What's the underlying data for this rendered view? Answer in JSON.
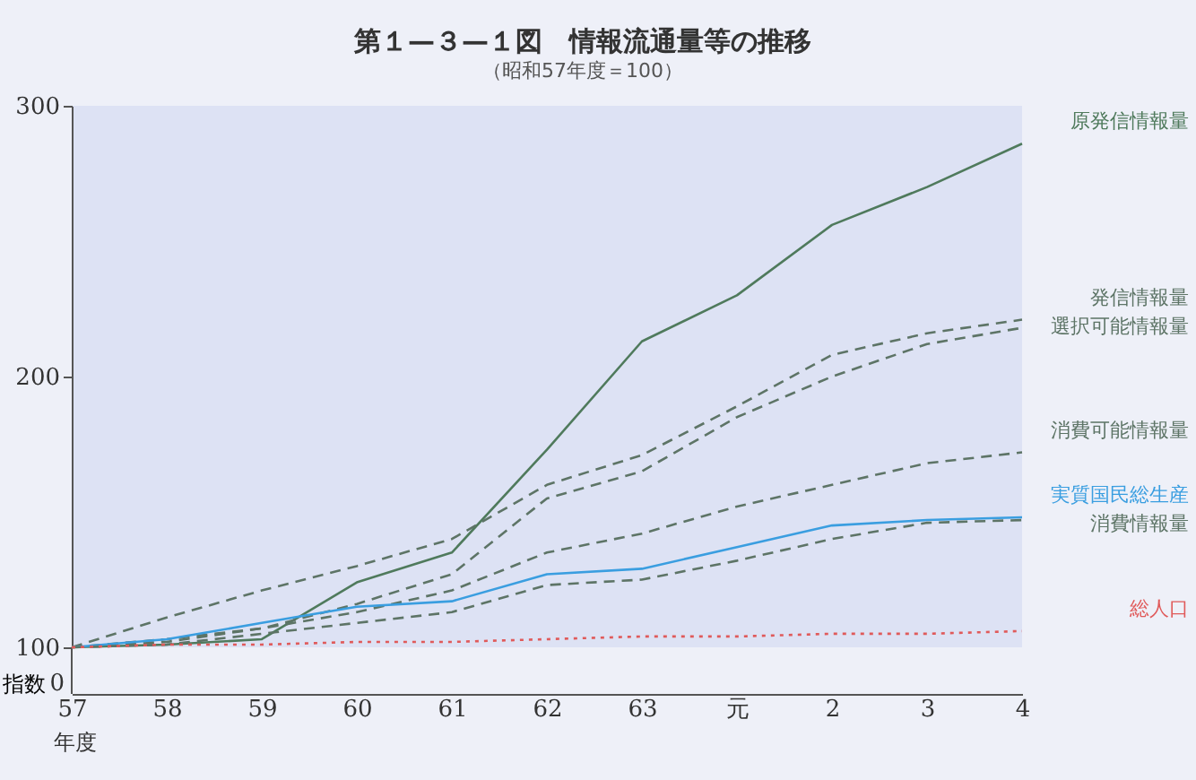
{
  "chart_data": {
    "type": "line",
    "title": "第１—３—１図　情報流通量等の推移",
    "subtitle": "（昭和57年度＝100）",
    "xlabel": "年度",
    "ylabel": "指数",
    "categories": [
      "57",
      "58",
      "59",
      "60",
      "61",
      "62",
      "63",
      "元",
      "2",
      "3",
      "4"
    ],
    "ylim": [
      100,
      300
    ],
    "yticks": [
      100,
      200,
      300
    ],
    "annotations": [
      "0"
    ],
    "grid": false,
    "legend": false,
    "marker": "none",
    "series": [
      {
        "name": "原発信情報量",
        "color": "#4f7a5c",
        "line_style": "solid",
        "values": [
          100,
          101,
          103,
          124,
          135,
          173,
          213,
          230,
          256,
          270,
          286
        ]
      },
      {
        "name": "発信情報量",
        "color": "#5d7466",
        "line_style": "dashed",
        "values": [
          100,
          111,
          121,
          130,
          140,
          160,
          171,
          189,
          208,
          216,
          221
        ]
      },
      {
        "name": "選択可能情報量",
        "color": "#5d7466",
        "line_style": "dashed",
        "values": [
          100,
          103,
          107,
          116,
          127,
          155,
          165,
          185,
          200,
          212,
          218
        ]
      },
      {
        "name": "消費可能情報量",
        "color": "#5d7466",
        "line_style": "dashed",
        "values": [
          100,
          102,
          107,
          113,
          121,
          135,
          142,
          152,
          160,
          168,
          172
        ]
      },
      {
        "name": "実質国民総生産",
        "color": "#3a9ee0",
        "line_style": "solid",
        "values": [
          100,
          103,
          109,
          115,
          117,
          127,
          129,
          137,
          145,
          147,
          148
        ]
      },
      {
        "name": "消費情報量",
        "color": "#5d7466",
        "line_style": "dashed",
        "values": [
          100,
          101,
          105,
          109,
          113,
          123,
          125,
          132,
          140,
          146,
          147
        ]
      },
      {
        "name": "総人口",
        "color": "#e05a5a",
        "line_style": "dotted",
        "values": [
          100,
          101,
          101,
          102,
          102,
          103,
          104,
          104,
          105,
          105,
          106
        ]
      }
    ]
  }
}
